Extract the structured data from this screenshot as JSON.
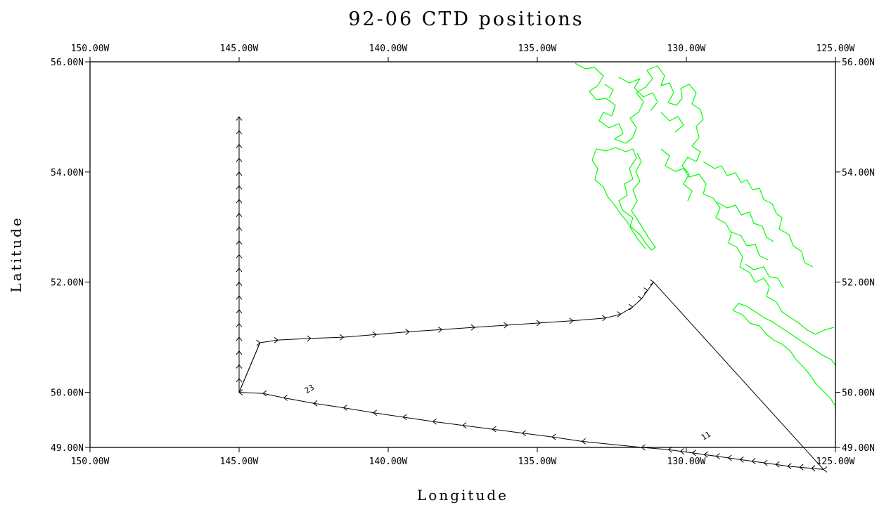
{
  "chart_data": {
    "type": "scatter",
    "title": "92-06 CTD positions",
    "xlabel": "Longitude",
    "ylabel": "Latitude",
    "xlim": [
      -150,
      -125
    ],
    "ylim": [
      49,
      56
    ],
    "x_ticks": [
      -150,
      -145,
      -140,
      -135,
      -130,
      -125
    ],
    "x_tick_labels": [
      "150.00W",
      "145.00W",
      "140.00W",
      "135.00W",
      "130.00W",
      "125.00W"
    ],
    "y_ticks": [
      49,
      50,
      52,
      54,
      56
    ],
    "y_tick_labels": [
      "49.00N",
      "50.00N",
      "52.00N",
      "54.00N",
      "56.00N"
    ],
    "grid": false,
    "colors": {
      "track": "#000000",
      "coastline": "#00ff00"
    },
    "annotations": [
      {
        "text": "11",
        "lon": -129.3,
        "lat": 49.17
      },
      {
        "text": "23",
        "lon": -142.6,
        "lat": 50.02
      }
    ],
    "series": [
      {
        "points": [
          [
            -125.4,
            48.6
          ],
          [
            -125.8,
            48.62
          ],
          [
            -126.2,
            48.64
          ],
          [
            -126.6,
            48.66
          ],
          [
            -127.0,
            48.69
          ],
          [
            -127.4,
            48.72
          ],
          [
            -127.8,
            48.75
          ],
          [
            -128.2,
            48.78
          ],
          [
            -128.6,
            48.81
          ],
          [
            -129.0,
            48.84
          ],
          [
            -129.4,
            48.87
          ],
          [
            -129.8,
            48.9
          ],
          [
            -130.2,
            48.93
          ],
          [
            -130.6,
            48.96
          ],
          [
            -131.5,
            49.0
          ],
          [
            -133.5,
            49.11
          ],
          [
            -134.5,
            49.19
          ],
          [
            -135.5,
            49.26
          ],
          [
            -136.5,
            49.33
          ],
          [
            -137.5,
            49.4
          ],
          [
            -138.5,
            49.47
          ],
          [
            -139.5,
            49.55
          ],
          [
            -140.5,
            49.63
          ],
          [
            -141.5,
            49.72
          ],
          [
            -142.5,
            49.8
          ],
          [
            -143.5,
            49.9
          ],
          [
            -144.2,
            49.98
          ],
          [
            -145.0,
            50.0
          ],
          [
            -145.0,
            50.25
          ],
          [
            -145.0,
            50.5
          ],
          [
            -145.0,
            50.75
          ],
          [
            -145.0,
            51.0
          ],
          [
            -145.0,
            51.25
          ],
          [
            -145.0,
            51.5
          ],
          [
            -145.0,
            51.75
          ],
          [
            -145.0,
            52.0
          ],
          [
            -145.0,
            52.25
          ],
          [
            -145.0,
            52.5
          ],
          [
            -145.0,
            52.75
          ],
          [
            -145.0,
            53.0
          ],
          [
            -145.0,
            53.25
          ],
          [
            -145.0,
            53.5
          ],
          [
            -145.0,
            53.75
          ],
          [
            -145.0,
            54.0
          ],
          [
            -145.0,
            54.25
          ],
          [
            -145.0,
            54.5
          ],
          [
            -145.0,
            54.75
          ],
          [
            -145.0,
            55.0
          ],
          [
            -144.3,
            50.9
          ],
          [
            -143.7,
            50.95
          ],
          [
            -142.6,
            50.98
          ],
          [
            -141.5,
            51.0
          ],
          [
            -140.4,
            51.05
          ],
          [
            -139.3,
            51.1
          ],
          [
            -138.2,
            51.14
          ],
          [
            -137.1,
            51.18
          ],
          [
            -136.0,
            51.22
          ],
          [
            -134.9,
            51.26
          ],
          [
            -133.8,
            51.3
          ],
          [
            -132.7,
            51.35
          ],
          [
            -132.2,
            51.42
          ],
          [
            -131.8,
            51.55
          ],
          [
            -131.5,
            51.7
          ],
          [
            -131.3,
            51.85
          ],
          [
            -131.1,
            52.0
          ]
        ]
      }
    ]
  }
}
